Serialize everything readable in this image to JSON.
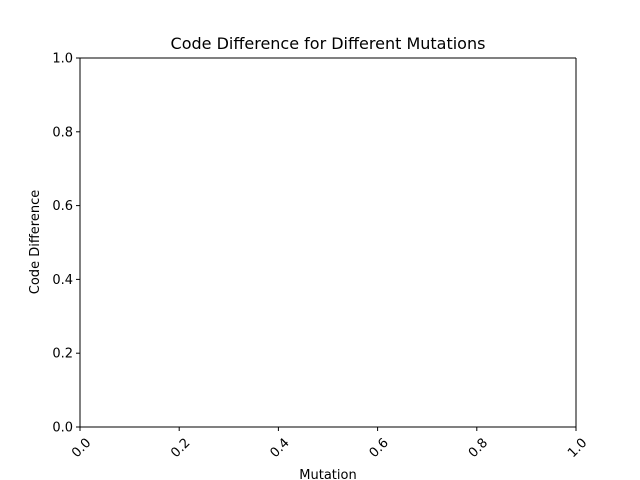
{
  "chart_data": {
    "type": "bar",
    "title": "Code Difference for Different Mutations",
    "xlabel": "Mutation",
    "ylabel": "Code Difference",
    "categories": [],
    "values": [],
    "xlim": [
      0.0,
      1.0
    ],
    "ylim": [
      0.0,
      1.0
    ],
    "x_ticks": [
      "0.0",
      "0.2",
      "0.4",
      "0.6",
      "0.8",
      "1.0"
    ],
    "y_ticks": [
      "0.0",
      "0.2",
      "0.4",
      "0.6",
      "0.8",
      "1.0"
    ],
    "x_tick_rotation": 45,
    "grid": false,
    "colors": {
      "background": "#ffffff",
      "axes": "#000000",
      "text": "#000000"
    }
  }
}
